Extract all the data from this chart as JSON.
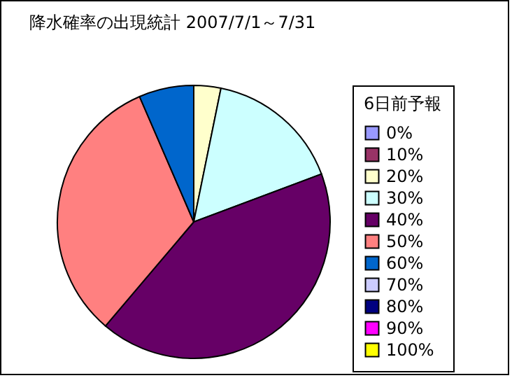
{
  "chart_data": {
    "type": "pie",
    "title": "降水確率の出現統計  2007/7/1～7/31",
    "legend_title": "6日前予報",
    "legend": "right",
    "categories": [
      "0%",
      "10%",
      "20%",
      "30%",
      "40%",
      "50%",
      "60%",
      "70%",
      "80%",
      "90%",
      "100%"
    ],
    "values": [
      0,
      0,
      3.2,
      16.1,
      41.9,
      32.3,
      6.5,
      0,
      0,
      0,
      0
    ],
    "colors": [
      "#9999ff",
      "#993366",
      "#ffffcc",
      "#ccffff",
      "#660066",
      "#ff8080",
      "#0066cc",
      "#ccccff",
      "#000080",
      "#ff00ff",
      "#ffff00"
    ]
  }
}
